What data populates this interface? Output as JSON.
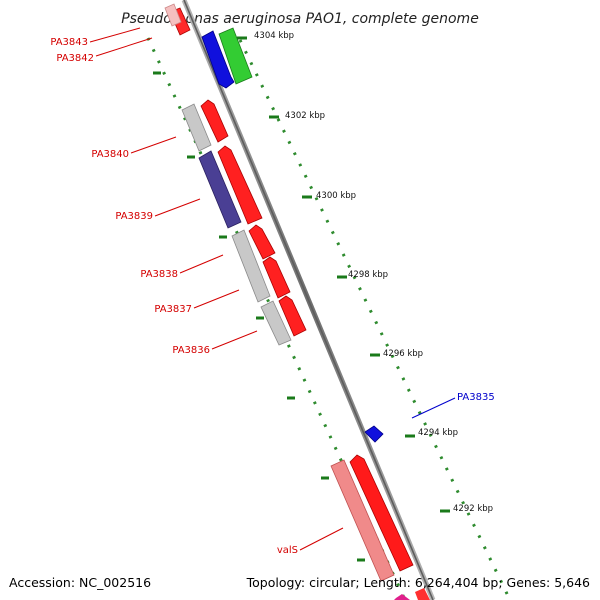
{
  "title": "Pseudomonas aeruginosa PAO1, complete genome",
  "footer": {
    "accession": "Accession: NC_002516",
    "topology": "Topology: circular; Length: 6,264,404 bp; Genes: 5,646"
  },
  "scale": {
    "ticks": [
      "4304 kbp",
      "4302 kbp",
      "4300 kbp",
      "4298 kbp",
      "4296 kbp",
      "4294 kbp",
      "4292 kbp"
    ]
  },
  "genes": {
    "left": [
      "PA3843",
      "PA3842",
      "PA3840",
      "PA3839",
      "PA3838",
      "PA3837",
      "PA3836",
      "valS"
    ],
    "right": [
      "PA3835"
    ]
  },
  "colors": {
    "left_label": "#d40000",
    "right_label": "#0000cc",
    "tick": "#1a7a1a",
    "backbone": "#888888"
  }
}
